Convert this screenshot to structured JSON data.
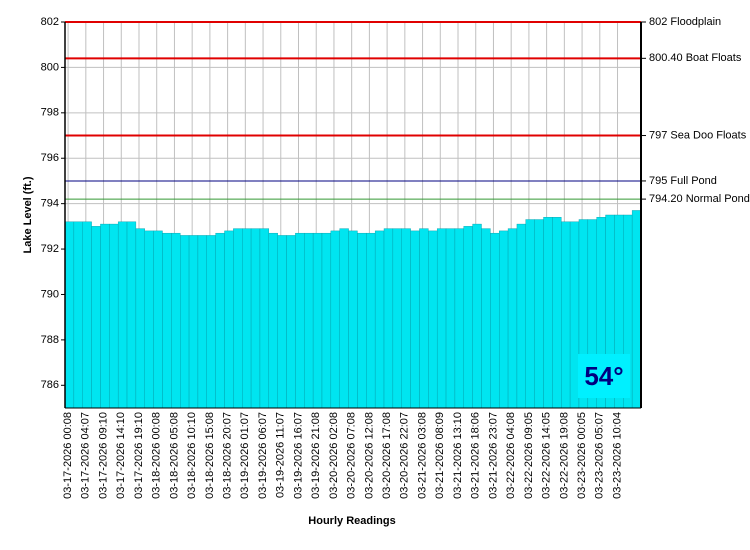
{
  "chart_data": {
    "type": "bar",
    "y_label": "Lake Level (ft.)",
    "x_label": "Hourly Readings",
    "temperature": "54°",
    "categories": [
      "03-17-2026 00:08",
      null,
      "03-17-2026 04:07",
      null,
      "03-17-2026 09:10",
      null,
      "03-17-2026 14:10",
      null,
      "03-17-2026 19:10",
      null,
      "03-18-2026 00:08",
      null,
      "03-18-2026 05:08",
      null,
      "03-18-2026 10:10",
      null,
      "03-18-2026 15:08",
      null,
      "03-18-2026 20:07",
      null,
      "03-19-2026 01:07",
      null,
      "03-19-2026 06:07",
      null,
      "03-19-2026 11:07",
      null,
      "03-19-2026 16:07",
      null,
      "03-19-2026 21:08",
      null,
      "03-20-2026 02:08",
      null,
      "03-20-2026 07:08",
      null,
      "03-20-2026 12:08",
      null,
      "03-20-2026 17:08",
      null,
      "03-20-2026 22:07",
      null,
      "03-21-2026 03:08",
      null,
      "03-21-2026 08:09",
      null,
      "03-21-2026 13:10",
      null,
      "03-21-2026 18:06",
      null,
      "03-21-2026 23:07",
      null,
      "03-22-2026 04:08",
      null,
      "03-22-2026 09:05",
      null,
      "03-22-2026 14:05",
      null,
      "03-22-2026 19:08",
      null,
      "03-23-2026 00:05",
      null,
      "03-23-2026 05:07",
      null,
      "03-23-2026 10:04",
      null,
      null
    ],
    "series": [
      {
        "name": "Lake Level",
        "color": "#00e5f0",
        "values": [
          793.2,
          793.2,
          793.2,
          793.0,
          793.1,
          793.1,
          793.2,
          793.2,
          792.9,
          792.8,
          792.8,
          792.7,
          792.7,
          792.6,
          792.6,
          792.6,
          792.6,
          792.7,
          792.8,
          792.9,
          792.9,
          792.9,
          792.9,
          792.7,
          792.6,
          792.6,
          792.7,
          792.7,
          792.7,
          792.7,
          792.8,
          792.9,
          792.8,
          792.7,
          792.7,
          792.8,
          792.9,
          792.9,
          792.9,
          792.8,
          792.9,
          792.8,
          792.9,
          792.9,
          792.9,
          793.0,
          793.1,
          792.9,
          792.7,
          792.8,
          792.9,
          793.1,
          793.3,
          793.3,
          793.4,
          793.4,
          793.2,
          793.2,
          793.3,
          793.3,
          793.4,
          793.5,
          793.5,
          793.5,
          793.7
        ]
      }
    ],
    "ylim": [
      785,
      802
    ],
    "yticks": [
      786,
      788,
      790,
      792,
      794,
      796,
      798,
      800,
      802
    ],
    "grid": true,
    "reference_lines": [
      {
        "value": 802,
        "label": "802 Floodplain",
        "color": "#e00000"
      },
      {
        "value": 800.4,
        "label": "800.40 Boat Floats",
        "color": "#e00000"
      },
      {
        "value": 797,
        "label": "797 Sea Doo Floats",
        "color": "#e00000"
      },
      {
        "value": 795,
        "label": "795 Full Pond",
        "color": "#000080"
      },
      {
        "value": 794.2,
        "label": "794.20 Normal Pond",
        "color": "#339933"
      }
    ]
  }
}
